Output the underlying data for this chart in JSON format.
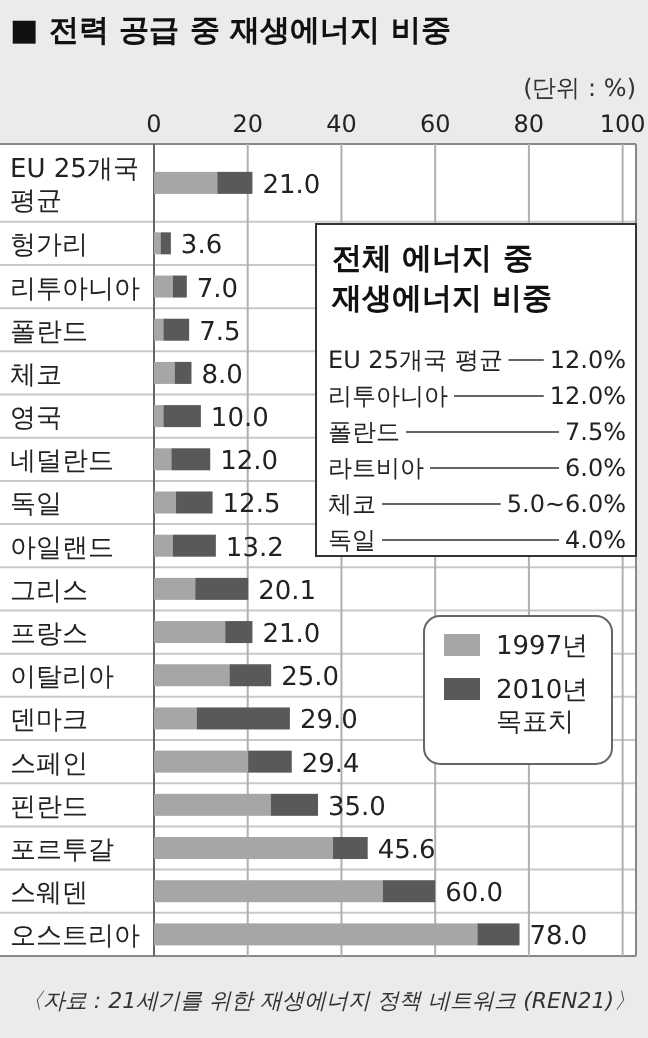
{
  "chart_data": [
    {
      "type": "bar",
      "orientation": "horizontal",
      "stacked": true,
      "title": "■ 전력 공급 중 재생에너지 비중",
      "annotations": [
        "(단위 : %)",
        "〈자료 : 21세기를 위한 재생에너지 정책 네트워크 (REN21)〉"
      ],
      "categories": [
        "EU 25개국 평균",
        "헝가리",
        "리투아니아",
        "폴란드",
        "체코",
        "영국",
        "네덜란드",
        "독일",
        "아일랜드",
        "그리스",
        "프랑스",
        "이탈리아",
        "덴마크",
        "스페인",
        "핀란드",
        "포르투갈",
        "스웨덴",
        "오스트리아"
      ],
      "series": [
        {
          "name": "1997년",
          "color": "#a6a6a6",
          "values": [
            13.5,
            1.4,
            4.0,
            2.0,
            4.4,
            2.0,
            3.7,
            4.7,
            4.0,
            8.8,
            15.2,
            16.1,
            9.1,
            20.1,
            24.9,
            38.2,
            48.8,
            69.0
          ]
        },
        {
          "name": "2010년 목표치",
          "color": "#595959",
          "values": [
            7.5,
            2.2,
            3.0,
            5.5,
            3.6,
            8.0,
            8.3,
            7.8,
            9.2,
            11.3,
            5.8,
            8.9,
            19.9,
            9.3,
            10.1,
            7.4,
            11.2,
            9.0
          ]
        }
      ],
      "totals": [
        "21.0",
        "3.6",
        "7.0",
        "7.5",
        "8.0",
        "10.0",
        "12.0",
        "12.5",
        "13.2",
        "20.1",
        "21.0",
        "25.0",
        "29.0",
        "29.4",
        "35.0",
        "45.6",
        "60.0",
        "78.0"
      ],
      "xlim": [
        0,
        102
      ],
      "xticks": [
        0,
        20,
        40,
        60,
        80,
        100
      ],
      "grid": "x",
      "legend": "right"
    },
    {
      "type": "other",
      "title": "전체 에너지 중 재생에너지 비중",
      "annotations": [
        "EU 25개국 평균",
        "12.0%",
        "리투아니아",
        "12.0%",
        "폴란드",
        "7.5%",
        "라트비아",
        "6.0%",
        "체코",
        "5.0~6.0%",
        "독일",
        "4.0%"
      ]
    }
  ]
}
